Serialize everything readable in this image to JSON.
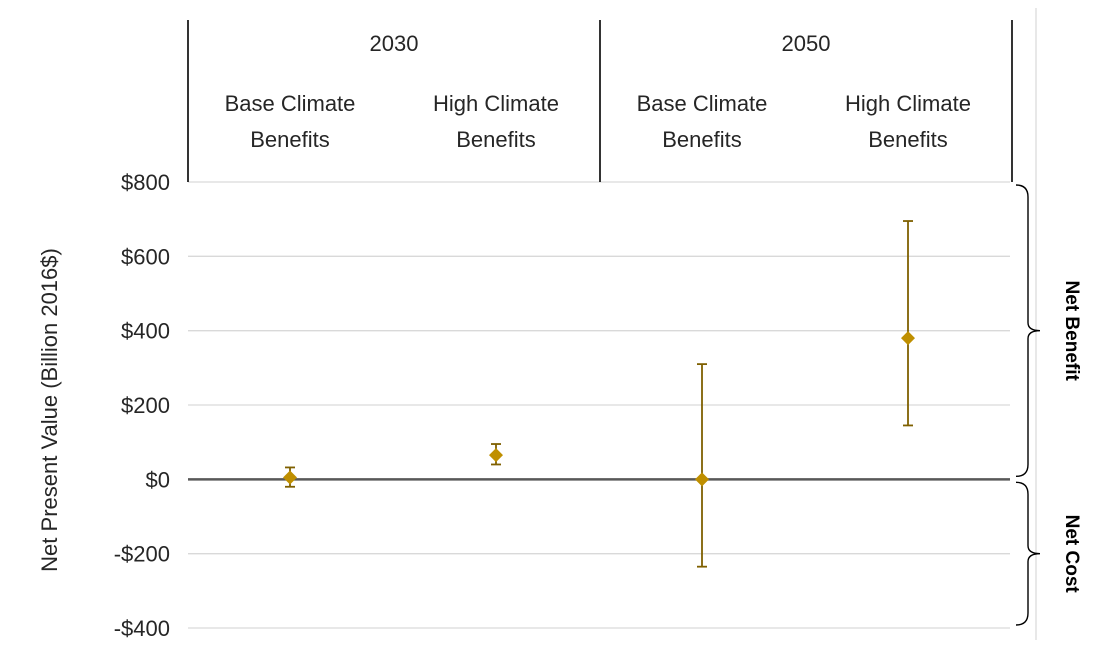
{
  "chart_data": {
    "type": "scatter",
    "title": "",
    "ylabel": "Net Present Value (Billion 2016$)",
    "ylim": [
      -400,
      800
    ],
    "y_ticks": [
      800,
      600,
      400,
      200,
      0,
      -200,
      -400
    ],
    "y_tick_labels": [
      "$800",
      "$600",
      "$400",
      "$200",
      "$0",
      "-$200",
      "-$400"
    ],
    "grid": true,
    "groups": [
      {
        "label": "2030",
        "categories": [
          [
            "Base Climate",
            "Benefits"
          ],
          [
            "High Climate",
            "Benefits"
          ]
        ]
      },
      {
        "label": "2050",
        "categories": [
          [
            "Base Climate",
            "Benefits"
          ],
          [
            "High Climate",
            "Benefits"
          ]
        ]
      }
    ],
    "points": [
      {
        "group": "2030",
        "category": "Base Climate Benefits",
        "value": 5,
        "low": -20,
        "high": 32
      },
      {
        "group": "2030",
        "category": "High Climate Benefits",
        "value": 65,
        "low": 40,
        "high": 95
      },
      {
        "group": "2050",
        "category": "Base Climate Benefits",
        "value": 0,
        "low": -235,
        "high": 310
      },
      {
        "group": "2050",
        "category": "High Climate Benefits",
        "value": 380,
        "low": 145,
        "high": 695
      }
    ],
    "side_labels": [
      {
        "label": "Net Benefit",
        "from": 0,
        "to": 800
      },
      {
        "label": "Net Cost",
        "from": -400,
        "to": 0
      }
    ],
    "colors": {
      "marker": "#BF8F00",
      "errorbar": "#7F6000",
      "grid": "#D9D9D9",
      "zero": "#595959"
    }
  }
}
